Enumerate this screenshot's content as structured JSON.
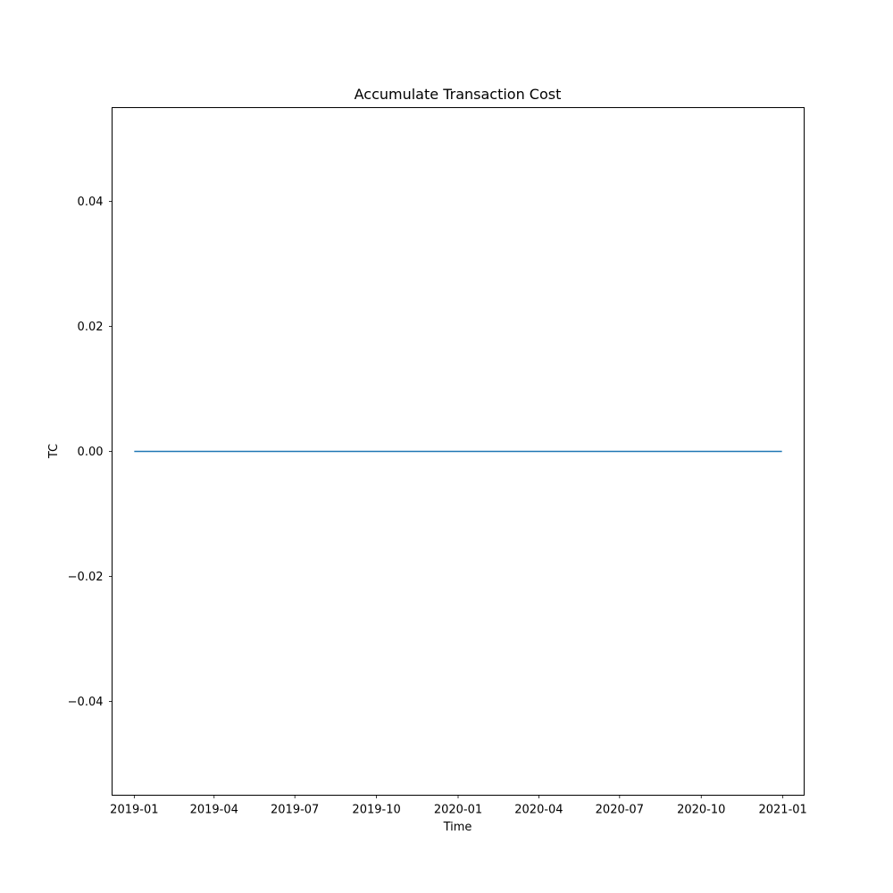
{
  "chart_data": {
    "type": "line",
    "title": "Accumulate Transaction Cost",
    "xlabel": "Time",
    "ylabel": "TC",
    "x_range": [
      "2018-12-07",
      "2021-01-25"
    ],
    "ylim": [
      -0.055,
      0.055
    ],
    "x_ticks": [
      "2019-01",
      "2019-04",
      "2019-07",
      "2019-10",
      "2020-01",
      "2020-04",
      "2020-07",
      "2020-10",
      "2021-01"
    ],
    "y_ticks": [
      {
        "value": 0.04,
        "label": "0.04"
      },
      {
        "value": 0.02,
        "label": "0.02"
      },
      {
        "value": 0.0,
        "label": "0.00"
      },
      {
        "value": -0.02,
        "label": "−0.02"
      },
      {
        "value": -0.04,
        "label": "−0.04"
      }
    ],
    "grid": false,
    "series": [
      {
        "color": "#1f77b4",
        "x": [
          "2019-01-01",
          "2020-12-31"
        ],
        "y": [
          0.0,
          0.0
        ]
      }
    ]
  }
}
